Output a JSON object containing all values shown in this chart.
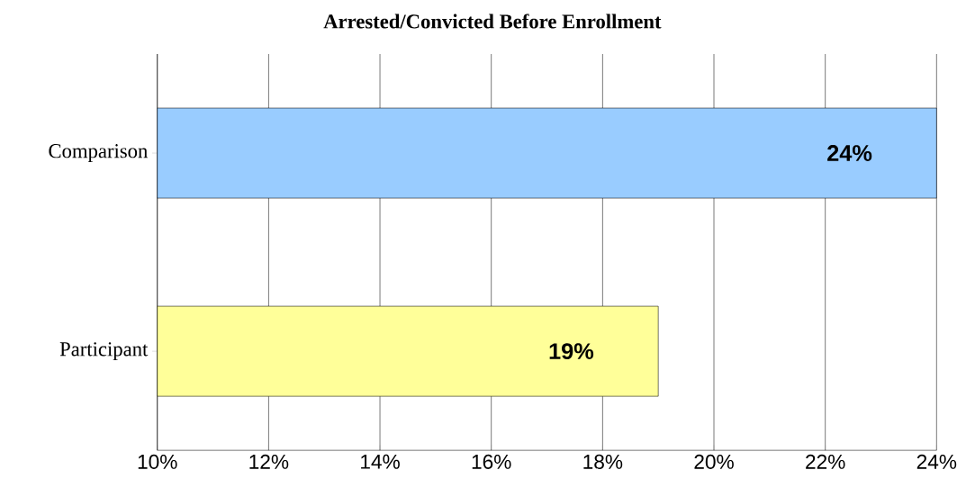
{
  "chart_data": {
    "type": "bar",
    "orientation": "horizontal",
    "title": "Arrested/Convicted Before Enrollment",
    "categories": [
      "Comparison",
      "Participant"
    ],
    "values": [
      24,
      19
    ],
    "colors": [
      "#99ccff",
      "#ffff99"
    ],
    "value_labels": [
      "24%",
      "19%"
    ],
    "xlim": [
      10,
      24
    ],
    "xticks": [
      {
        "value": 10,
        "label": "10%"
      },
      {
        "value": 12,
        "label": "12%"
      },
      {
        "value": 14,
        "label": "14%"
      },
      {
        "value": 16,
        "label": "16%"
      },
      {
        "value": 18,
        "label": "18%"
      },
      {
        "value": 20,
        "label": "20%"
      },
      {
        "value": 22,
        "label": "22%"
      },
      {
        "value": 24,
        "label": "24%"
      }
    ],
    "grid": "x"
  }
}
